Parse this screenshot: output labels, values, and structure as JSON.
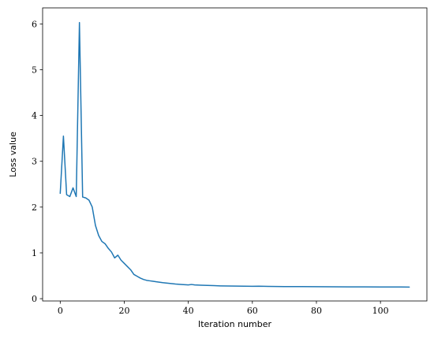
{
  "chart_data": {
    "type": "line",
    "title": "",
    "xlabel": "Iteration number",
    "ylabel": "Loss value",
    "xlim": [
      -5.5,
      114.5
    ],
    "ylim": [
      -0.05,
      6.35
    ],
    "xticks": [
      0,
      20,
      40,
      60,
      80,
      100
    ],
    "yticks": [
      0,
      1,
      2,
      3,
      4,
      5,
      6
    ],
    "grid": false,
    "legend": "none",
    "line_color": "#1f77b4",
    "series": [
      {
        "x": [
          0,
          1,
          2,
          3,
          4,
          5,
          6,
          7,
          8,
          9,
          10,
          11,
          12,
          13,
          14,
          15,
          16,
          17,
          18,
          19,
          20,
          21,
          22,
          23,
          24,
          25,
          26,
          27,
          28,
          29,
          30,
          32,
          34,
          36,
          38,
          40,
          41,
          42,
          44,
          46,
          48,
          50,
          55,
          60,
          62,
          65,
          70,
          75,
          80,
          85,
          90,
          95,
          100,
          105,
          109
        ],
        "y": [
          2.3,
          3.55,
          2.27,
          2.23,
          2.42,
          2.23,
          6.03,
          2.22,
          2.2,
          2.15,
          2.0,
          1.6,
          1.38,
          1.25,
          1.2,
          1.1,
          1.02,
          0.89,
          0.95,
          0.84,
          0.77,
          0.7,
          0.63,
          0.53,
          0.49,
          0.45,
          0.42,
          0.4,
          0.39,
          0.38,
          0.37,
          0.35,
          0.335,
          0.32,
          0.31,
          0.3,
          0.31,
          0.3,
          0.295,
          0.29,
          0.285,
          0.28,
          0.275,
          0.27,
          0.272,
          0.268,
          0.265,
          0.263,
          0.262,
          0.26,
          0.258,
          0.257,
          0.256,
          0.255,
          0.254
        ]
      }
    ]
  }
}
